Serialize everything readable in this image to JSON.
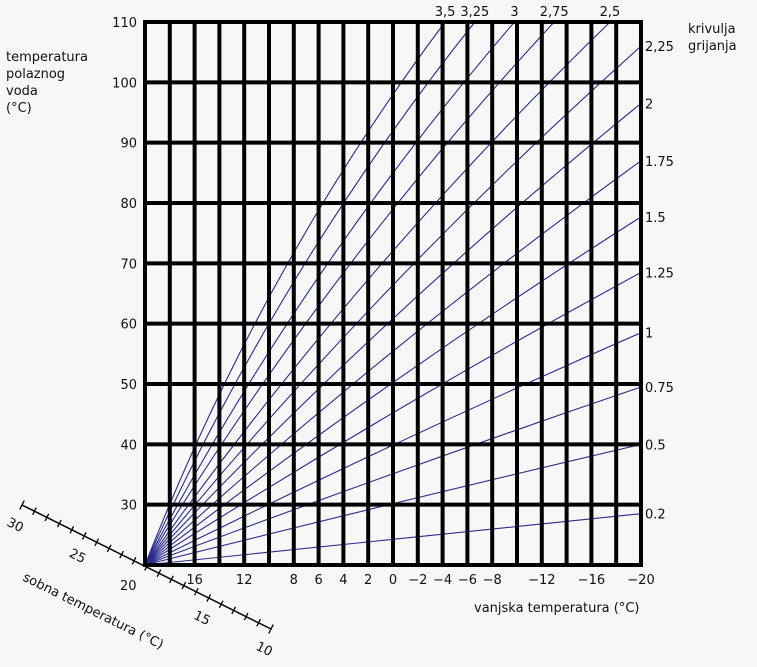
{
  "chart_data": {
    "type": "line",
    "title": "",
    "ylabel": "temperatura polaznog voda (°C)",
    "ylabel_lines": [
      "temperatura",
      "polaznog",
      "voda",
      "(°C)"
    ],
    "xlabel": "vanjska temperatura (°C)",
    "legend_title_lines": [
      "krivulja",
      "grijanja"
    ],
    "secondary_axis_label": "sobna temperatura (°C)",
    "ylim": [
      20,
      110
    ],
    "xlim": [
      20,
      -20
    ],
    "y_ticks": [
      110,
      100,
      90,
      80,
      70,
      60,
      50,
      40,
      30
    ],
    "x_ticks": [
      16,
      12,
      8,
      6,
      4,
      2,
      0,
      -2,
      -4,
      -6,
      -8,
      -12,
      -16,
      -20
    ],
    "x_gridlines": [
      20,
      18,
      16,
      14,
      12,
      10,
      8,
      6,
      4,
      2,
      0,
      -2,
      -4,
      -6,
      -8,
      -10,
      -12,
      -14,
      -16,
      -18,
      -20
    ],
    "room_temp_axis": {
      "labels": [
        30,
        25,
        20,
        15,
        10
      ],
      "range": [
        30,
        10
      ]
    },
    "grid": true,
    "line_color": "#2b2b8f",
    "series": [
      {
        "name": "0.2",
        "end": {
          "x": -20,
          "y": 28.5
        }
      },
      {
        "name": "0.5",
        "end": {
          "x": -20,
          "y": 40
        }
      },
      {
        "name": "0.75",
        "end": {
          "x": -20,
          "y": 49.5
        }
      },
      {
        "name": "1",
        "end": {
          "x": -20,
          "y": 58.5
        }
      },
      {
        "name": "1.25",
        "end": {
          "x": -20,
          "y": 68.5
        }
      },
      {
        "name": "1.5",
        "end": {
          "x": -20,
          "y": 77.7
        }
      },
      {
        "name": "1.75",
        "end": {
          "x": -20,
          "y": 87
        }
      },
      {
        "name": "2",
        "end": {
          "x": -20,
          "y": 96.5
        }
      },
      {
        "name": "2.25",
        "end": {
          "x": -20,
          "y": 106
        }
      },
      {
        "name": "2.5",
        "end": {
          "x": -17.5,
          "y": 110
        }
      },
      {
        "name": "2.75",
        "end": {
          "x": -13,
          "y": 110
        }
      },
      {
        "name": "3",
        "end": {
          "x": -9.8,
          "y": 110
        }
      },
      {
        "name": "3.25",
        "end": {
          "x": -6.6,
          "y": 110
        }
      },
      {
        "name": "3.5",
        "end": {
          "x": -4.2,
          "y": 110
        }
      }
    ]
  }
}
